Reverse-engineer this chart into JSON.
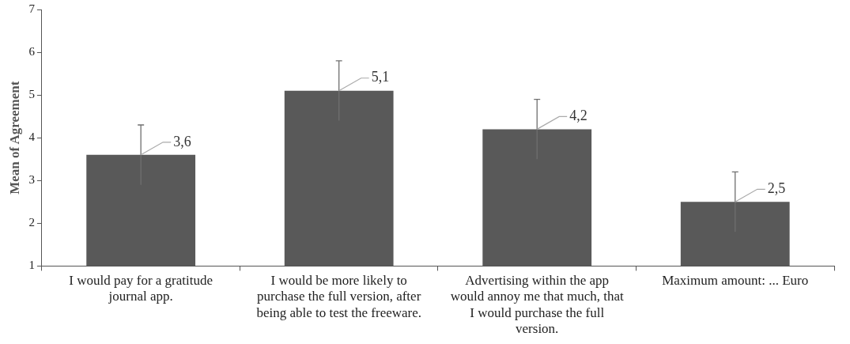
{
  "chart_data": {
    "type": "bar",
    "ylabel": "Mean of Agreement",
    "categories": [
      "I would pay for a gratitude journal app.",
      "I would be more likely to purchase the full version, after being able to test the freeware.",
      "Advertising within the app would annoy me that much, that I would purchase the full version.",
      "Maximum amount: ... Euro"
    ],
    "values": [
      3.6,
      5.1,
      4.2,
      2.5
    ],
    "errors": [
      0.7,
      0.7,
      0.7,
      0.7
    ],
    "value_labels": [
      "3,6",
      "5,1",
      "4,2",
      "2,5"
    ],
    "color": "#595959",
    "ylim": [
      1,
      7
    ],
    "yticks": [
      1,
      2,
      3,
      4,
      5,
      6,
      7
    ],
    "grid": false,
    "legend": false
  }
}
